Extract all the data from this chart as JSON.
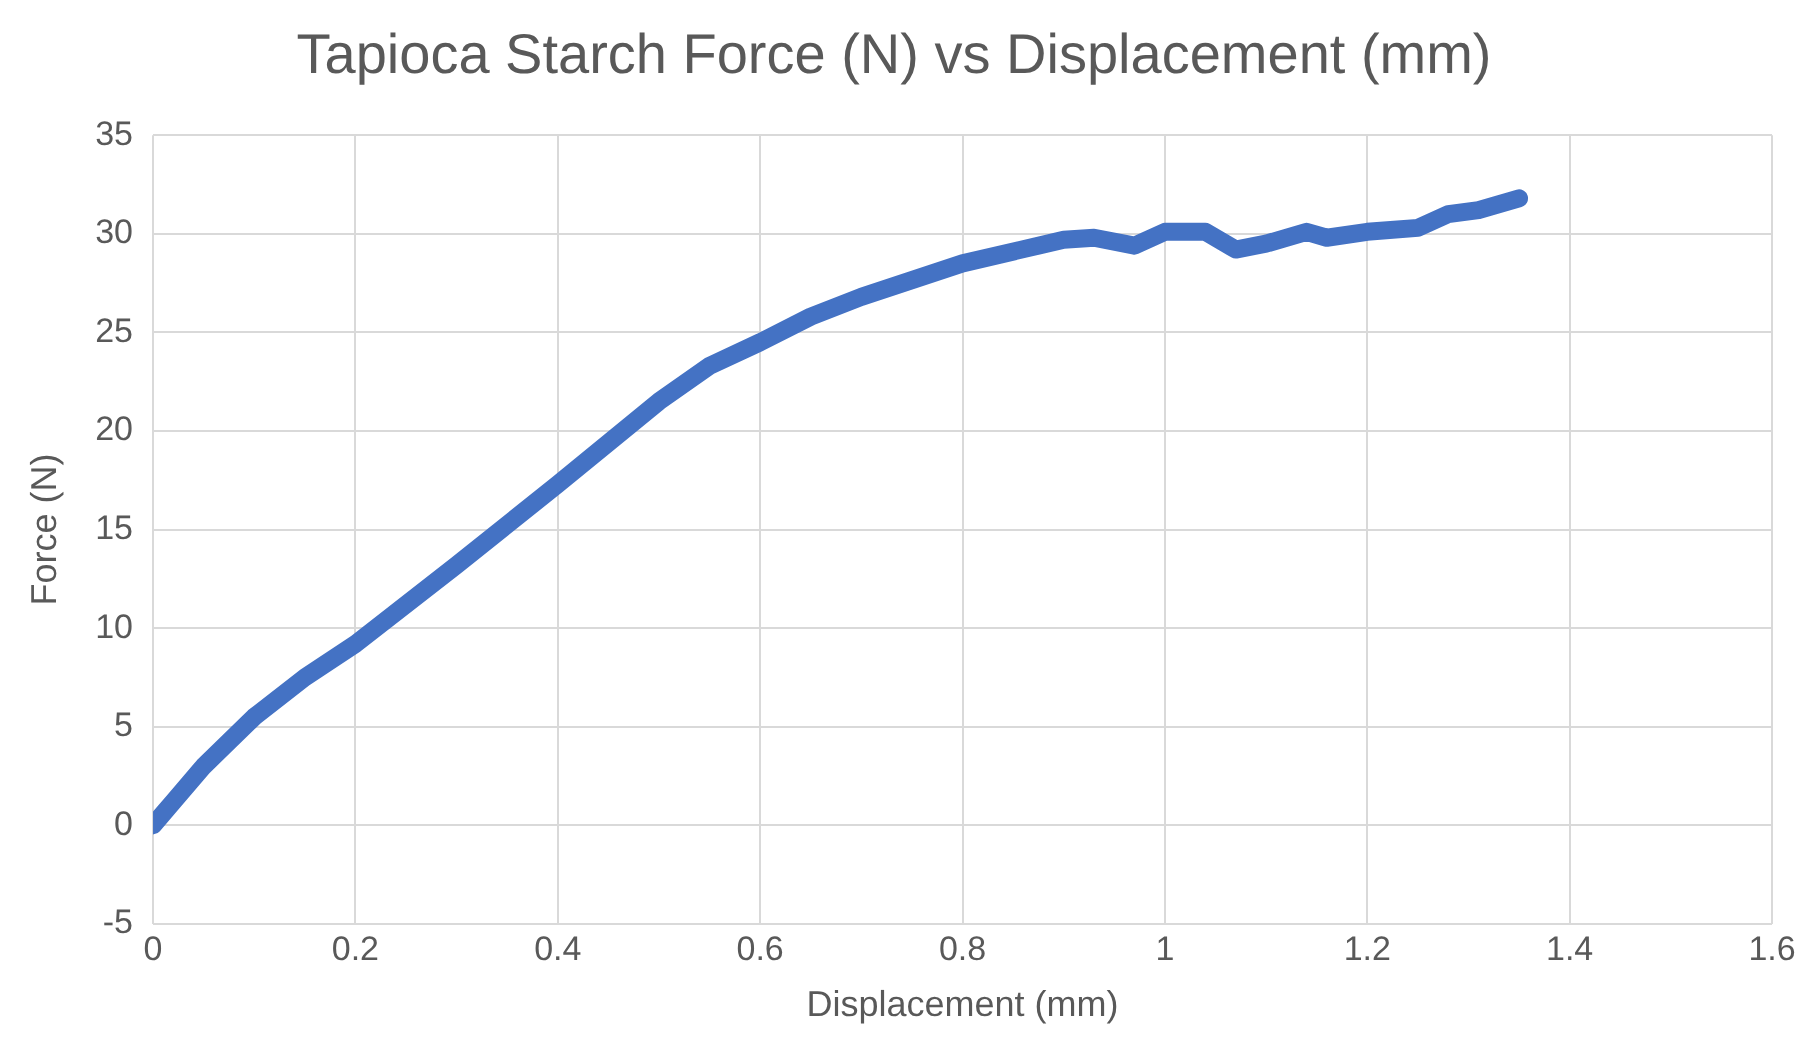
{
  "chart_data": {
    "type": "line",
    "title": "Tapioca Starch Force (N) vs Displacement (mm)",
    "xlabel": "Displacement (mm)",
    "ylabel": "Force (N)",
    "series": [
      {
        "color": "#4472c4",
        "x": [
          0,
          0.02,
          0.05,
          0.1,
          0.15,
          0.2,
          0.3,
          0.4,
          0.5,
          0.55,
          0.6,
          0.65,
          0.7,
          0.8,
          0.9,
          0.93,
          0.97,
          1.0,
          1.04,
          1.07,
          1.1,
          1.14,
          1.16,
          1.2,
          1.25,
          1.28,
          1.31,
          1.35
        ],
        "values": [
          0,
          1.2,
          3,
          5.5,
          7.5,
          9.2,
          13.2,
          17.3,
          21.5,
          23.3,
          24.5,
          25.8,
          26.8,
          28.5,
          29.7,
          29.8,
          29.4,
          30.1,
          30.1,
          29.2,
          29.5,
          30.1,
          29.8,
          30.1,
          30.3,
          31,
          31.2,
          31.8
        ]
      }
    ],
    "xlim": [
      0,
      1.6
    ],
    "xticks": [
      0,
      0.2,
      0.4,
      0.6,
      0.8,
      1,
      1.2,
      1.4,
      1.6
    ],
    "ylim": [
      -5,
      35
    ],
    "yticks": [
      -5,
      0,
      5,
      10,
      15,
      20,
      25,
      30,
      35
    ],
    "grid": true,
    "legend": false,
    "marker": "none",
    "line_style": "solid"
  }
}
